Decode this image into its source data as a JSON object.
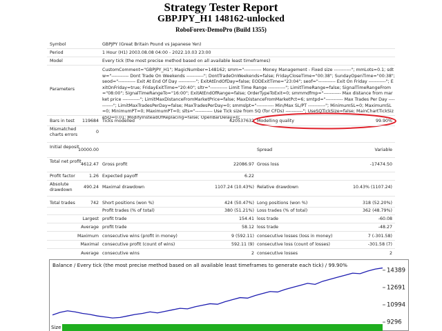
{
  "header": {
    "title": "Strategy Tester Report",
    "subtitle": "GBPJPY_H1 148162-unlocked",
    "server": "RoboForex-DemoPro (Build 1355)"
  },
  "info": [
    [
      "Symbol",
      "GBPJPY (Great Britain Pound vs Japanese Yen)"
    ],
    [
      "Period",
      "1 Hour (H1) 2003.08.08 04:00 - 2022.10.03 23:00"
    ],
    [
      "Model",
      "Every tick (the most precise method based on all available least timeframes)"
    ],
    [
      "Parameters",
      "CustomComment=\"GBPJPY_H1\"; MagicNumber=148162; smm=\"----------- Money Management - Fixed size -----------\"; mmLots=0.1; sdtw=\"----------- Dont Trade On Weekends -----------\"; DontTradeOnWeekends=false; FridayCloseTime=\"00:38\"; SundayOpenTime=\"00:38\"; seod=\"----------- Exit At End Of Day -----------\"; ExitAtEndOfDay=false; EODExitTime=\"23:04\"; seof=\"----------- Exit On Friday -----------\"; ExitOnFriday=true; FridayExitTime=\"20:40\"; sltr=\"----------- Limit Time Range -----------\"; LimitTimeRange=false; SignalTimeRangeFrom=\"08:00\"; SignalTimeRangeTo=\"16:00\"; ExitAtEndOfRange=false; OrderTypeToExit=0; smmmdfmp=\"----------- Max distance from market price -----------\"; LimitMaxDistanceFromMarketPrice=false; MaxDistanceFromMarketPct=6; smtpd=\"----------- Max Trades Per Day -----------\"; LimitMaxTradesPerDay=false; MaxTradesPerDay=0; smmslpt=\"----------- Min/Max SL/PT -----------\"; MinimumSL=0; MaximumSL=0; MinimumPT=0; MaximumPT=0; slts=\"----------- Use Tick size from SQ (for CFDs) -----------\"; UseSQTickSize=false; MainChartTickSizeSQ=0.01; ModifyInsteadOfReplacing=false; OpenBarDelay=0;"
    ]
  ],
  "stats": [
    [
      "Bars in test",
      "119684",
      "Ticks modelled",
      "420537632",
      "Modelling quality",
      "99.90%"
    ],
    [
      "Mismatched charts errors",
      "0"
    ],
    [
      "Initial deposit",
      "10000.00",
      "Spread",
      "Variable"
    ],
    [
      "Total net profit",
      "4612.47",
      "Gross profit",
      "22086.97",
      "Gross loss",
      "-17474.50"
    ],
    [
      "Profit factor",
      "1.26",
      "Expected payoff",
      "6.22"
    ],
    [
      "Absolute drawdown",
      "490.24",
      "Maximal drawdown",
      "1107.24 (10.43%)",
      "Relative drawdown",
      "10.43% (1107.24)"
    ],
    [
      "Total trades",
      "742",
      "Short positions (won %)",
      "424 (50.47%)",
      "Long positions (won %)",
      "318 (52.20%)"
    ],
    [
      "Profit trades (% of total)",
      "380 (51.21%)",
      "Loss trades (% of total)",
      "362 (48.79%)"
    ],
    [
      "Largest",
      "profit trade",
      "154.41",
      "loss trade",
      "-60.08"
    ],
    [
      "Average",
      "profit trade",
      "58.12",
      "loss trade",
      "-48.27"
    ],
    [
      "Maximum",
      "consecutive wins (profit in money)",
      "9 (592.11)",
      "consecutive losses (loss in money)",
      "7 (-301.58)"
    ],
    [
      "Maximal",
      "consecutive profit (count of wins)",
      "592.11 (9)",
      "consecutive loss (count of losses)",
      "-301.58 (7)"
    ],
    [
      "Average",
      "consecutive wins",
      "2",
      "consecutive losses",
      "2"
    ]
  ],
  "balance_chart": {
    "type": "line",
    "title": "Balance / Every tick (the most precise method based on all available least timeframes to generate each tick) / 99.90%",
    "values": [
      10000,
      10250,
      10400,
      10300,
      10150,
      10050,
      9900,
      9800,
      9700,
      9750,
      9900,
      10050,
      10150,
      10300,
      10200,
      10350,
      10500,
      10650,
      10600,
      10800,
      10950,
      11100,
      11050,
      11300,
      11500,
      11700,
      11650,
      11900,
      12100,
      12300,
      12250,
      12500,
      12700,
      12900,
      13100,
      13000,
      13300,
      13500,
      13700,
      13900,
      14100,
      14050,
      14300,
      14500,
      14612.47
    ],
    "color": "#1c1cb0",
    "ylim": [
      9100,
      14650
    ],
    "yticks": [
      14389,
      12691,
      10994,
      9296
    ],
    "size_label": "Size"
  }
}
